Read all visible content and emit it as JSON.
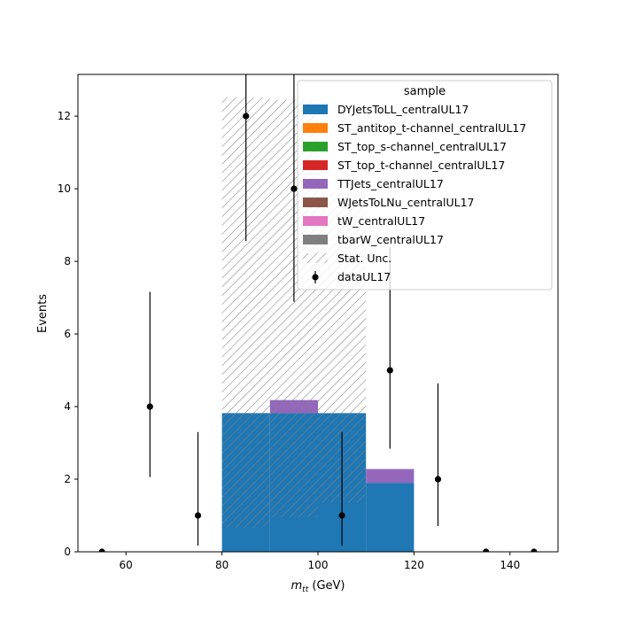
{
  "chart_data": {
    "type": "bar",
    "xlabel_main": "m",
    "xlabel_sub": "tt",
    "xlabel_unit": " (GeV)",
    "ylabel": "Events",
    "xlim": [
      50,
      150
    ],
    "ylim": [
      0,
      13.15
    ],
    "xticks": [
      60,
      80,
      100,
      120,
      140
    ],
    "yticks": [
      0,
      2,
      4,
      6,
      8,
      10,
      12
    ],
    "legend": {
      "title": "sample",
      "placement": "top-right"
    },
    "series": [
      {
        "name": "DYJetsToLL_centralUL17",
        "color": "#1f77b4",
        "bins": [
          {
            "lo": 80,
            "hi": 90,
            "value": 3.82
          },
          {
            "lo": 90,
            "hi": 100,
            "value": 3.82
          },
          {
            "lo": 100,
            "hi": 110,
            "value": 3.82
          },
          {
            "lo": 110,
            "hi": 120,
            "value": 1.9
          }
        ]
      },
      {
        "name": "ST_antitop_t-channel_centralUL17",
        "color": "#ff7f0e",
        "bins": []
      },
      {
        "name": "ST_top_s-channel_centralUL17",
        "color": "#2ca02c",
        "bins": []
      },
      {
        "name": "ST_top_t-channel_centralUL17",
        "color": "#d62728",
        "bins": []
      },
      {
        "name": "TTJets_centralUL17",
        "color": "#9467bd",
        "bins": [
          {
            "lo": 90,
            "hi": 100,
            "value": 0.36
          },
          {
            "lo": 110,
            "hi": 120,
            "value": 0.38
          }
        ]
      },
      {
        "name": "WJetsToLNu_centralUL17",
        "color": "#8c564b",
        "bins": []
      },
      {
        "name": "tW_centralUL17",
        "color": "#e377c2",
        "bins": []
      },
      {
        "name": "tbarW_centralUL17",
        "color": "#7f7f7f",
        "bins": []
      }
    ],
    "stat_unc": {
      "name": "Stat. Unc.",
      "color": "#808080",
      "bins": [
        {
          "lo": 80,
          "hi": 90,
          "low": 0.65,
          "high": 12.52
        },
        {
          "lo": 90,
          "hi": 100,
          "low": 0.95,
          "high": 12.45
        },
        {
          "lo": 100,
          "hi": 110,
          "low": 1.35,
          "high": 9.9
        }
      ]
    },
    "data": {
      "name": "dataUL17",
      "color": "#000000",
      "points": [
        {
          "x": 55,
          "y": 0,
          "err_lo": 0,
          "err_hi": 0
        },
        {
          "x": 65,
          "y": 4,
          "err_lo": 1.94,
          "err_hi": 3.16
        },
        {
          "x": 75,
          "y": 1,
          "err_lo": 0.83,
          "err_hi": 2.3
        },
        {
          "x": 85,
          "y": 12,
          "err_lo": 3.44,
          "err_hi": 4.61
        },
        {
          "x": 95,
          "y": 10,
          "err_lo": 3.11,
          "err_hi": 4.27
        },
        {
          "x": 105,
          "y": 1,
          "err_lo": 0.83,
          "err_hi": 2.3
        },
        {
          "x": 115,
          "y": 5,
          "err_lo": 2.16,
          "err_hi": 3.38
        },
        {
          "x": 125,
          "y": 2,
          "err_lo": 1.29,
          "err_hi": 2.64
        },
        {
          "x": 135,
          "y": 0,
          "err_lo": 0,
          "err_hi": 0
        },
        {
          "x": 145,
          "y": 0,
          "err_lo": 0,
          "err_hi": 0
        }
      ]
    }
  }
}
